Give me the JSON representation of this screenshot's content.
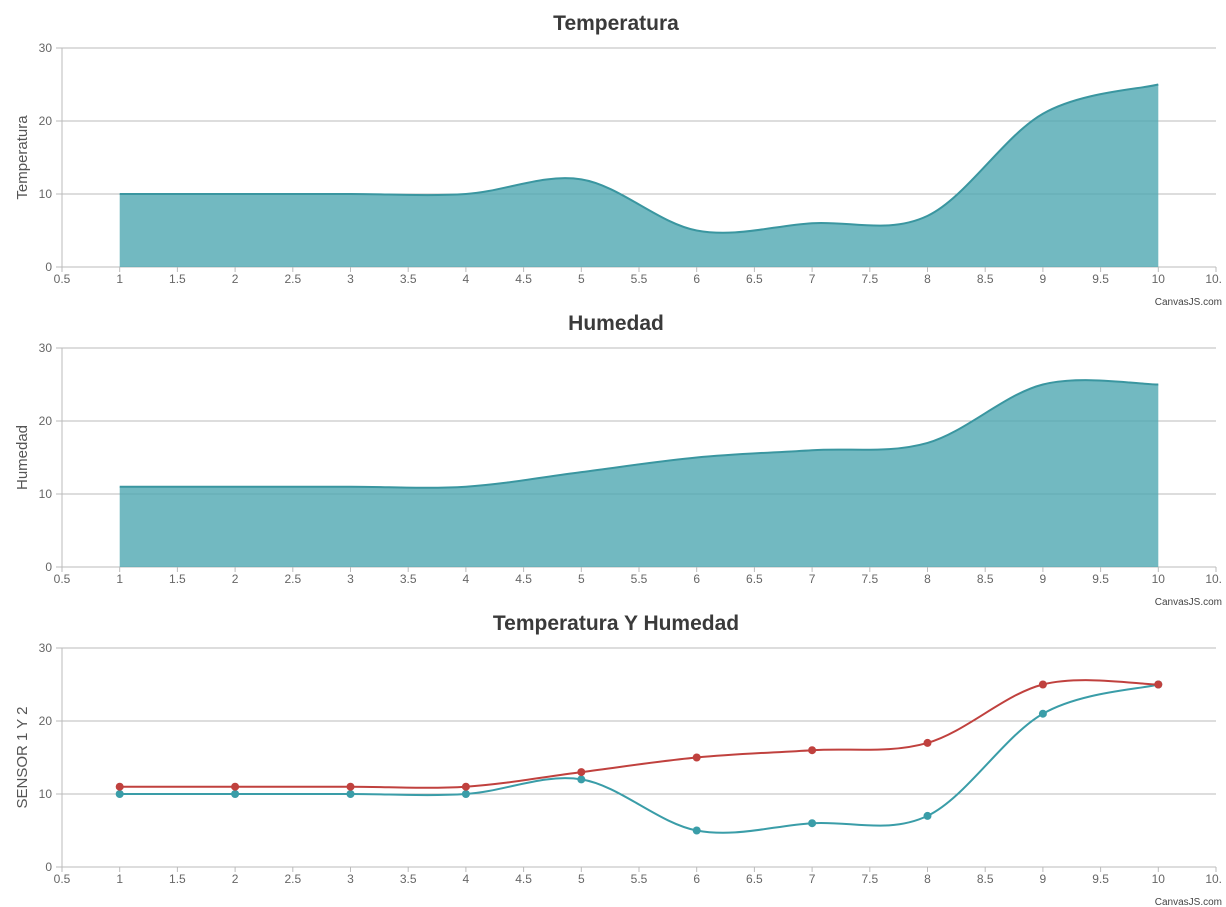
{
  "credit": "CanvasJS.com",
  "colors": {
    "area": "#4FA8B2",
    "areaLine": "#3A96A0",
    "series1": "#3A9DA8",
    "series2": "#C0413E",
    "grid": "#BBBBBB"
  },
  "chart_data": [
    {
      "type": "area",
      "title": "Temperatura",
      "xlabel": "",
      "ylabel": "Temperatura",
      "xlim": [
        0.5,
        10.5
      ],
      "ylim": [
        0,
        30
      ],
      "x_ticks": [
        "0.5",
        "1",
        "1.5",
        "2",
        "2.5",
        "3",
        "3.5",
        "4",
        "4.5",
        "5",
        "5.5",
        "6",
        "6.5",
        "7",
        "7.5",
        "8",
        "8.5",
        "9",
        "9.5",
        "10",
        "10."
      ],
      "y_ticks": [
        "0",
        "10",
        "20",
        "30"
      ],
      "grid": true,
      "series": [
        {
          "x": [
            1,
            2,
            3,
            4,
            5,
            6,
            7,
            8,
            9,
            10
          ],
          "values": [
            10,
            10,
            10,
            10,
            12,
            5,
            6,
            7,
            21,
            25
          ]
        }
      ]
    },
    {
      "type": "area",
      "title": "Humedad",
      "xlabel": "",
      "ylabel": "Humedad",
      "xlim": [
        0.5,
        10.5
      ],
      "ylim": [
        0,
        30
      ],
      "x_ticks": [
        "0.5",
        "1",
        "1.5",
        "2",
        "2.5",
        "3",
        "3.5",
        "4",
        "4.5",
        "5",
        "5.5",
        "6",
        "6.5",
        "7",
        "7.5",
        "8",
        "8.5",
        "9",
        "9.5",
        "10",
        "10."
      ],
      "y_ticks": [
        "0",
        "10",
        "20",
        "30"
      ],
      "grid": true,
      "series": [
        {
          "x": [
            1,
            2,
            3,
            4,
            5,
            6,
            7,
            8,
            9,
            10
          ],
          "values": [
            11,
            11,
            11,
            11,
            13,
            15,
            16,
            17,
            25,
            25
          ]
        }
      ]
    },
    {
      "type": "line",
      "title": "Temperatura Y Humedad",
      "xlabel": "",
      "ylabel": "SENSOR 1 Y 2",
      "xlim": [
        0.5,
        10.5
      ],
      "ylim": [
        0,
        30
      ],
      "x_ticks": [
        "0.5",
        "1",
        "1.5",
        "2",
        "2.5",
        "3",
        "3.5",
        "4",
        "4.5",
        "5",
        "5.5",
        "6",
        "6.5",
        "7",
        "7.5",
        "8",
        "8.5",
        "9",
        "9.5",
        "10",
        "10."
      ],
      "y_ticks": [
        "0",
        "10",
        "20",
        "30"
      ],
      "grid": true,
      "series": [
        {
          "x": [
            1,
            2,
            3,
            4,
            5,
            6,
            7,
            8,
            9,
            10
          ],
          "values": [
            10,
            10,
            10,
            10,
            12,
            5,
            6,
            7,
            21,
            25
          ]
        },
        {
          "x": [
            1,
            2,
            3,
            4,
            5,
            6,
            7,
            8,
            9,
            10
          ],
          "values": [
            11,
            11,
            11,
            11,
            13,
            15,
            16,
            17,
            25,
            25
          ]
        }
      ]
    }
  ]
}
